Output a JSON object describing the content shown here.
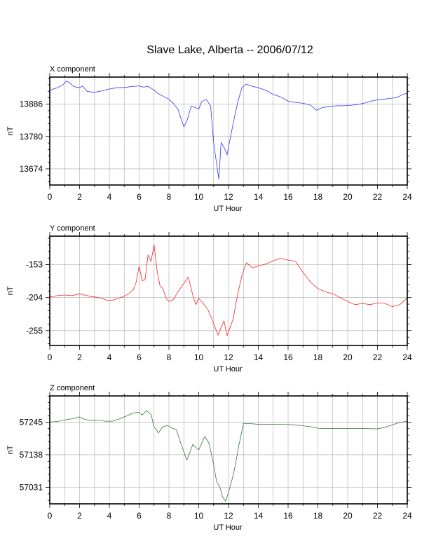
{
  "title": "Slave Lake, Alberta -- 2006/07/12",
  "chart_data": [
    {
      "type": "line",
      "title": "X component",
      "xlabel": "UT Hour",
      "ylabel": "nT",
      "xlim": [
        0,
        24
      ],
      "ylim": [
        13621,
        13975
      ],
      "x_ticks": [
        0,
        2,
        4,
        6,
        8,
        10,
        12,
        14,
        16,
        18,
        20,
        22,
        24
      ],
      "y_ticks": [
        13674,
        13780,
        13886
      ],
      "grid": true,
      "color": "#3333ff",
      "series": [
        {
          "x": [
            0,
            0.5,
            0.9,
            1.1,
            1.3,
            1.6,
            2.0,
            2.2,
            2.5,
            3.0,
            3.5,
            4.0,
            4.5,
            5.0,
            5.5,
            6.0,
            6.3,
            6.6,
            7.0,
            7.3,
            7.7,
            8.0,
            8.3,
            8.6,
            8.8,
            9.0,
            9.2,
            9.5,
            9.8,
            10.0,
            10.2,
            10.5,
            10.8,
            11.0,
            11.2,
            11.35,
            11.5,
            11.7,
            11.9,
            12.1,
            12.3,
            12.6,
            12.9,
            13.2,
            13.5,
            14.0,
            14.5,
            15.0,
            15.5,
            16.0,
            16.5,
            17.0,
            17.5,
            17.9,
            18.3,
            18.8,
            19.3,
            19.8,
            20.3,
            20.8,
            21.3,
            21.8,
            22.3,
            22.8,
            23.3,
            23.7,
            24.0
          ],
          "y": [
            13932,
            13940,
            13950,
            13962,
            13958,
            13944,
            13940,
            13946,
            13928,
            13925,
            13930,
            13936,
            13940,
            13941,
            13944,
            13946,
            13942,
            13945,
            13932,
            13920,
            13910,
            13902,
            13888,
            13870,
            13840,
            13812,
            13830,
            13880,
            13874,
            13870,
            13895,
            13902,
            13880,
            13760,
            13690,
            13640,
            13760,
            13745,
            13720,
            13770,
            13820,
            13890,
            13940,
            13952,
            13946,
            13940,
            13932,
            13918,
            13910,
            13896,
            13892,
            13889,
            13883,
            13866,
            13875,
            13879,
            13881,
            13881,
            13883,
            13886,
            13892,
            13899,
            13902,
            13905,
            13908,
            13918,
            13922
          ]
        }
      ]
    },
    {
      "type": "line",
      "title": "Y component",
      "xlabel": "UT Hour",
      "ylabel": "nT",
      "xlim": [
        0,
        24
      ],
      "ylim": [
        -278,
        -109
      ],
      "x_ticks": [
        0,
        2,
        4,
        6,
        8,
        10,
        12,
        14,
        16,
        18,
        20,
        22,
        24
      ],
      "y_ticks": [
        -153,
        -204,
        -255
      ],
      "grid": true,
      "color": "#ff2222",
      "series": [
        {
          "x": [
            0,
            0.5,
            1.0,
            1.5,
            2.0,
            2.5,
            3.0,
            3.5,
            3.8,
            4.2,
            4.6,
            5.0,
            5.3,
            5.6,
            5.8,
            6.0,
            6.2,
            6.4,
            6.6,
            6.8,
            7.0,
            7.2,
            7.4,
            7.6,
            7.8,
            8.0,
            8.3,
            8.6,
            9.0,
            9.3,
            9.6,
            9.8,
            10.0,
            10.3,
            10.6,
            10.9,
            11.1,
            11.3,
            11.5,
            11.7,
            11.9,
            12.1,
            12.3,
            12.6,
            12.9,
            13.2,
            13.6,
            14.0,
            14.5,
            15.0,
            15.5,
            16.0,
            16.5,
            17.0,
            17.5,
            18.0,
            18.5,
            19.0,
            19.5,
            20.0,
            20.5,
            21.0,
            21.5,
            22.0,
            22.5,
            23.0,
            23.5,
            24.0
          ],
          "y": [
            -203,
            -201,
            -200,
            -201,
            -198,
            -201,
            -203,
            -205,
            -208,
            -208,
            -205,
            -202,
            -198,
            -192,
            -180,
            -155,
            -178,
            -176,
            -138,
            -148,
            -122,
            -162,
            -186,
            -190,
            -205,
            -210,
            -207,
            -195,
            -182,
            -172,
            -200,
            -215,
            -205,
            -213,
            -222,
            -238,
            -250,
            -262,
            -250,
            -240,
            -263,
            -250,
            -238,
            -200,
            -170,
            -150,
            -158,
            -155,
            -152,
            -147,
            -143,
            -146,
            -148,
            -165,
            -180,
            -190,
            -195,
            -198,
            -204,
            -210,
            -215,
            -213,
            -215,
            -212,
            -213,
            -218,
            -215,
            -204
          ]
        }
      ]
    },
    {
      "type": "line",
      "title": "Z component",
      "xlabel": "UT Hour",
      "ylabel": "nT",
      "xlim": [
        0,
        24
      ],
      "ylim": [
        56977,
        57331
      ],
      "x_ticks": [
        0,
        2,
        4,
        6,
        8,
        10,
        12,
        14,
        16,
        18,
        20,
        22,
        24
      ],
      "y_ticks": [
        57031,
        57138,
        57245
      ],
      "grid": true,
      "color": "#337733",
      "series": [
        {
          "x": [
            0,
            0.5,
            1.0,
            1.5,
            2.0,
            2.3,
            2.7,
            3.2,
            3.7,
            4.2,
            4.7,
            5.2,
            5.6,
            6.0,
            6.2,
            6.5,
            6.8,
            7.0,
            7.3,
            7.6,
            7.9,
            8.2,
            8.5,
            8.8,
            9.0,
            9.2,
            9.4,
            9.6,
            9.8,
            10.0,
            10.2,
            10.4,
            10.7,
            11.0,
            11.2,
            11.4,
            11.6,
            11.8,
            12.0,
            12.2,
            12.4,
            12.7,
            13.0,
            13.5,
            14.0,
            15.0,
            16.0,
            16.5,
            17.0,
            17.5,
            18.0,
            18.5,
            19.0,
            20.0,
            21.0,
            22.0,
            22.5,
            23.0,
            23.5,
            24.0
          ],
          "y": [
            57245,
            57247,
            57252,
            57256,
            57262,
            57255,
            57250,
            57252,
            57248,
            57248,
            57256,
            57266,
            57275,
            57277,
            57268,
            57283,
            57270,
            57230,
            57210,
            57230,
            57234,
            57226,
            57220,
            57175,
            57148,
            57120,
            57145,
            57172,
            57162,
            57154,
            57176,
            57198,
            57175,
            57105,
            57050,
            57035,
            57000,
            56985,
            57015,
            57050,
            57090,
            57170,
            57240,
            57240,
            57238,
            57238,
            57237,
            57236,
            57233,
            57230,
            57225,
            57224,
            57224,
            57224,
            57224,
            57223,
            57228,
            57236,
            57244,
            57248
          ]
        }
      ]
    }
  ]
}
